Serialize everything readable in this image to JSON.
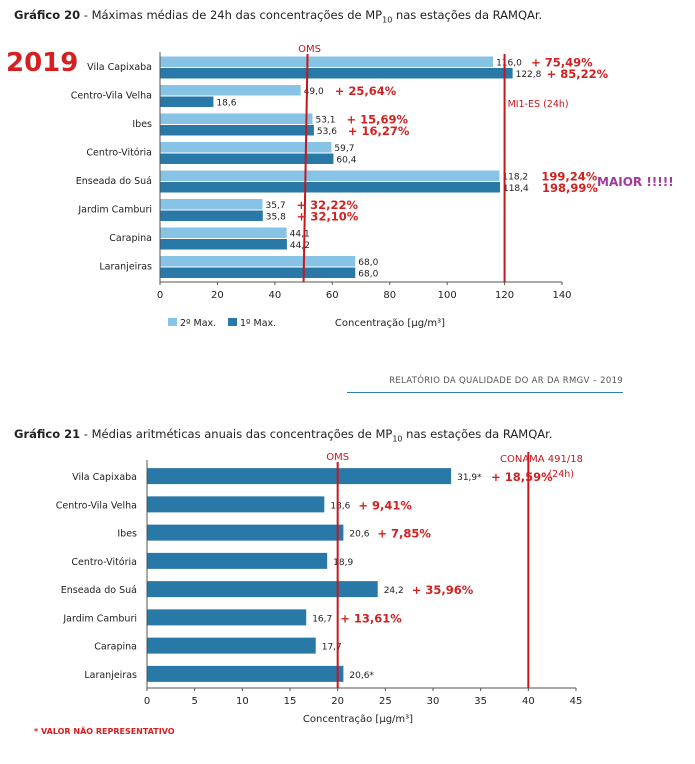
{
  "chart20": {
    "title_bold": "Gráfico 20",
    "title_rest_a": " - Máximas médias de 24h das concentrações de MP",
    "title_sub": "10",
    "title_rest_b": " nas estações da RAMQAr.",
    "year_label": "2019",
    "maior_label": "MAIOR !!!!!",
    "legend_2": "2º Max.",
    "legend_1": "1º Max.",
    "xlabel": "Concentração [µg/m³]",
    "oms_label": "OMS",
    "mi_label": "MI1-ES (24h)"
  },
  "chart21": {
    "title_bold": "Gráfico 21",
    "title_rest_a": " - Médias aritméticas anuais das concentrações de MP",
    "title_sub": "10",
    "title_rest_b": " nas estações da RAMQAr.",
    "xlabel": "Concentração [µg/m³]",
    "oms_label": "OMS",
    "conama_label_1": "CONAMA 491/18",
    "conama_label_2": "(24h)"
  },
  "report_header": "RELATÓRIO DA QUALIDADE DO AR DA RMGV – 2019",
  "footnote": "* VALOR NÃO REPRESENTATIVO",
  "colors": {
    "light_bar": "#87c3e4",
    "dark_bar": "#2878a8",
    "ref_line": "#c8161d",
    "annotation": "#d42020"
  },
  "chart_data": [
    {
      "type": "bar",
      "orientation": "horizontal",
      "title": "Gráfico 20 - Máximas médias de 24h das concentrações de MP10 nas estações da RAMQAr.",
      "xlabel": "Concentração [µg/m³]",
      "xlim": [
        0,
        140
      ],
      "xticks": [
        0,
        20,
        40,
        60,
        80,
        100,
        120,
        140
      ],
      "categories": [
        "Vila Capixaba",
        "Centro-Vila Velha",
        "Ibes",
        "Centro-Vitória",
        "Enseada do Suá",
        "Jardim Camburi",
        "Carapina",
        "Laranjeiras"
      ],
      "series": [
        {
          "name": "2º Max.",
          "color": "#87c3e4",
          "values": [
            116.0,
            49.0,
            53.1,
            59.7,
            118.2,
            35.7,
            44.1,
            68.0
          ],
          "labels": [
            "116,0",
            "49,0",
            "53,1",
            "59,7",
            "118,2",
            "35,7",
            "44,1",
            "68,0"
          ]
        },
        {
          "name": "1º Max.",
          "color": "#2878a8",
          "values": [
            122.8,
            18.6,
            53.6,
            60.4,
            118.4,
            35.8,
            44.2,
            68.0
          ],
          "labels": [
            "122,8",
            "18,6",
            "53,6",
            "60,4",
            "118,4",
            "35,8",
            "44,2",
            "68,0"
          ]
        }
      ],
      "reference_lines": [
        {
          "label": "OMS",
          "x": 50
        },
        {
          "label": "MI1-ES (24h)",
          "x": 120
        }
      ],
      "annotations": [
        {
          "category": "Vila Capixaba",
          "series": "2º Max.",
          "text": "+ 75,49%"
        },
        {
          "category": "Vila Capixaba",
          "series": "1º Max.",
          "text": "+ 85,22%"
        },
        {
          "category": "Centro-Vila Velha",
          "series": "2º Max.",
          "text": "+ 25,64%"
        },
        {
          "category": "Ibes",
          "series": "2º Max.",
          "text": "+ 15,69%"
        },
        {
          "category": "Ibes",
          "series": "1º Max.",
          "text": "+ 16,27%"
        },
        {
          "category": "Enseada do Suá",
          "series": "2º Max.",
          "text": "199,24%"
        },
        {
          "category": "Enseada do Suá",
          "series": "1º Max.",
          "text": "198,99%"
        },
        {
          "category": "Jardim Camburi",
          "series": "2º Max.",
          "text": "+ 32,22%"
        },
        {
          "category": "Jardim Camburi",
          "series": "1º Max.",
          "text": "+ 32,10%"
        }
      ],
      "legend_position": "bottom-left"
    },
    {
      "type": "bar",
      "orientation": "horizontal",
      "title": "Gráfico 21 - Médias aritméticas anuais das concentrações de MP10 nas estações da RAMQAr.",
      "xlabel": "Concentração [µg/m³]",
      "xlim": [
        0,
        45
      ],
      "xticks": [
        0,
        5,
        10,
        15,
        20,
        25,
        30,
        35,
        40,
        45
      ],
      "categories": [
        "Vila Capixaba",
        "Centro-Vila Velha",
        "Ibes",
        "Centro-Vitória",
        "Enseada do Suá",
        "Jardim Camburi",
        "Carapina",
        "Laranjeiras"
      ],
      "series": [
        {
          "color": "#2878a8",
          "values": [
            31.9,
            18.6,
            20.6,
            18.9,
            24.2,
            16.7,
            17.7,
            20.6
          ],
          "labels": [
            "31,9*",
            "18,6",
            "20,6",
            "18,9",
            "24,2",
            "16,7",
            "17,7",
            "20,6*"
          ]
        }
      ],
      "reference_lines": [
        {
          "label": "OMS",
          "x": 20
        },
        {
          "label": "CONAMA 491/18",
          "x": 40
        }
      ],
      "annotations": [
        {
          "category": "Vila Capixaba",
          "text": "+ 18,59%"
        },
        {
          "category": "Centro-Vila Velha",
          "text": "+ 9,41%"
        },
        {
          "category": "Ibes",
          "text": "+ 7,85%"
        },
        {
          "category": "Enseada do Suá",
          "text": "+ 35,96%"
        },
        {
          "category": "Jardim Camburi",
          "text": "+ 13,61%"
        }
      ]
    }
  ]
}
